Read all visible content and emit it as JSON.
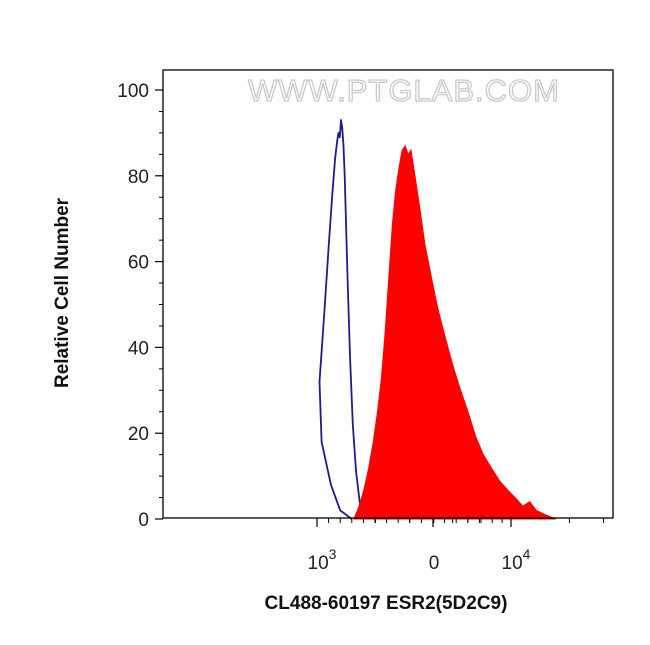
{
  "watermark": "WWW.PTGLAB.COM",
  "chart_data": {
    "type": "area",
    "xlabel": "CL488-60197 ESR2(5D2C9)",
    "ylabel": "Relative Cell Number",
    "x_scale": "biexponential",
    "ylim": [
      0,
      100
    ],
    "y_ticks": [
      "0",
      "20",
      "40",
      "60",
      "80",
      "100"
    ],
    "x_ticks": [
      {
        "base": "0",
        "exp": "",
        "value": 0
      },
      {
        "base": "10",
        "exp": "3",
        "value": 1000
      },
      {
        "base": "10",
        "exp": "4",
        "value": 10000
      }
    ],
    "grid": false,
    "legend": "none",
    "series": [
      {
        "style": "outline",
        "color": "#1c1c8c",
        "x": [
          700,
          800,
          880,
          960,
          1030,
          1090,
          1150,
          1200,
          1240,
          1270,
          1290,
          1310,
          1330,
          1350,
          1370,
          1390,
          1410,
          1440,
          1480,
          1530,
          1590,
          1660,
          1750,
          1850
        ],
        "y": [
          0,
          2,
          8,
          18,
          32,
          48,
          64,
          76,
          84,
          88,
          90,
          89,
          93,
          91,
          87,
          80,
          70,
          55,
          38,
          22,
          11,
          4,
          1,
          0
        ]
      },
      {
        "style": "filled",
        "color": "#ff0000",
        "x": [
          1550,
          1650,
          1750,
          1850,
          1950,
          2050,
          2150,
          2250,
          2350,
          2450,
          2550,
          2650,
          2750,
          2850,
          2950,
          3050,
          3200,
          3400,
          3600,
          3900,
          4200,
          4600,
          5000,
          5500,
          6000,
          6600,
          7200,
          7900,
          8700,
          9500,
          10500,
          11500,
          12500,
          13500,
          15000,
          17000
        ],
        "y": [
          0,
          3,
          7,
          12,
          18,
          25,
          33,
          44,
          57,
          69,
          77,
          82,
          86,
          87,
          85,
          86,
          80,
          72,
          64,
          56,
          49,
          42,
          36,
          30,
          25,
          19,
          15,
          12,
          9,
          7,
          5,
          3,
          4,
          2,
          1,
          0
        ]
      }
    ]
  }
}
